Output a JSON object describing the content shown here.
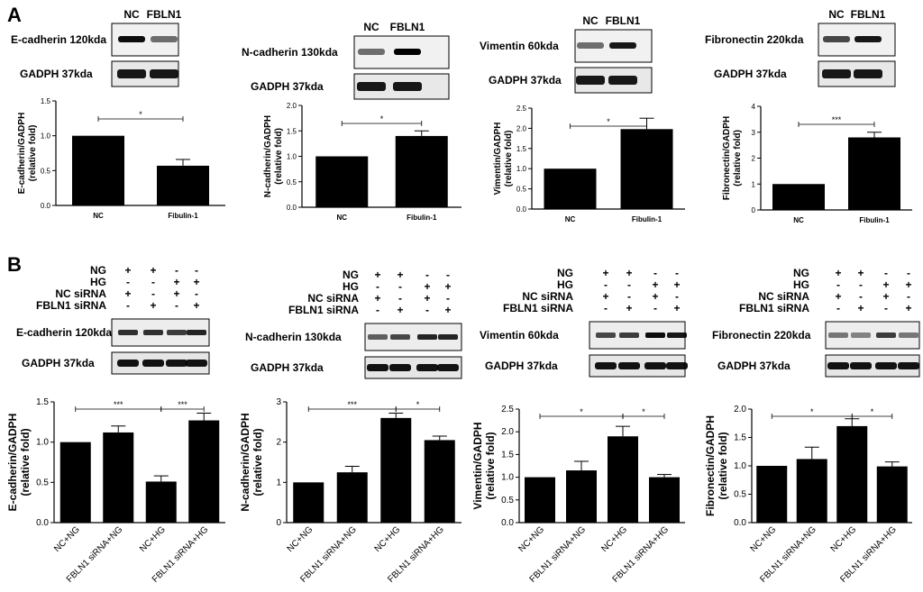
{
  "panel_labels": [
    "A",
    "B"
  ],
  "panelA": {
    "blots": [
      {
        "lanes": [
          "NC",
          "FBLN1"
        ],
        "target": "E-cadherin",
        "target_kda": "120kda",
        "loading": "GADPH",
        "loading_kda": "37kda"
      },
      {
        "lanes": [
          "NC",
          "FBLN1"
        ],
        "target": "N-cadherin",
        "target_kda": "130kda",
        "loading": "GADPH",
        "loading_kda": "37kda"
      },
      {
        "lanes": [
          "NC",
          "FBLN1"
        ],
        "target": "Vimentin",
        "target_kda": "60kda",
        "loading": "GADPH",
        "loading_kda": "37kda"
      },
      {
        "lanes": [
          "NC",
          "FBLN1"
        ],
        "target": "Fibronectin",
        "target_kda": "220kda",
        "loading": "GADPH",
        "loading_kda": "37kda"
      }
    ]
  },
  "panelB": {
    "condition_rows": [
      "NG",
      "HG",
      "NC siRNA",
      "FBLN1 siRNA"
    ],
    "condition_signs": [
      [
        "+",
        "+",
        "-",
        "-"
      ],
      [
        "-",
        "-",
        "+",
        "+"
      ],
      [
        "+",
        "-",
        "+",
        "-"
      ],
      [
        "-",
        "+",
        "-",
        "+"
      ]
    ],
    "blots": [
      {
        "target": "E-cadherin",
        "target_kda": "120kda",
        "loading": "GADPH",
        "loading_kda": "37kda"
      },
      {
        "target": "N-cadherin",
        "target_kda": "130kda",
        "loading": "GADPH",
        "loading_kda": "37kda"
      },
      {
        "target": "Vimentin",
        "target_kda": "60kda",
        "loading": "GADPH",
        "loading_kda": "37kda"
      },
      {
        "target": "Fibronectin",
        "target_kda": "220kda",
        "loading": "GADPH",
        "loading_kda": "37kda"
      }
    ]
  },
  "chart_data": [
    {
      "type": "bar",
      "panel": "A",
      "categories": [
        "NC",
        "Fibulin-1"
      ],
      "values": [
        1.0,
        0.57
      ],
      "errors": [
        0,
        0.09
      ],
      "ylabel": [
        "E-cadherin/GADPH",
        "(relative fold)"
      ],
      "ylim": [
        0,
        1.5
      ],
      "yticks": [
        "0.0",
        "0.5",
        "1.0",
        "1.5"
      ],
      "significance": [
        {
          "from": 0,
          "to": 1,
          "label": "*"
        }
      ]
    },
    {
      "type": "bar",
      "panel": "A",
      "categories": [
        "NC",
        "Fibulin-1"
      ],
      "values": [
        1.0,
        1.4
      ],
      "errors": [
        0,
        0.1
      ],
      "ylabel": [
        "N-cadherin/GADPH",
        "(relative fold)"
      ],
      "ylim": [
        0,
        2.0
      ],
      "yticks": [
        "0.0",
        "0.5",
        "1.0",
        "1.5",
        "2.0"
      ],
      "significance": [
        {
          "from": 0,
          "to": 1,
          "label": "*"
        }
      ]
    },
    {
      "type": "bar",
      "panel": "A",
      "categories": [
        "NC",
        "Fibulin-1"
      ],
      "values": [
        1.0,
        1.98
      ],
      "errors": [
        0,
        0.27
      ],
      "ylabel": [
        "Vimentin/GADPH",
        "(relative fold)"
      ],
      "ylim": [
        0,
        2.5
      ],
      "yticks": [
        "0.0",
        "0.5",
        "1.0",
        "1.5",
        "2.0",
        "2.5"
      ],
      "significance": [
        {
          "from": 0,
          "to": 1,
          "label": "*"
        }
      ]
    },
    {
      "type": "bar",
      "panel": "A",
      "categories": [
        "NC",
        "Fibulin-1"
      ],
      "values": [
        1.0,
        2.8
      ],
      "errors": [
        0,
        0.2
      ],
      "ylabel": [
        "Fibronectin/GADPH",
        "(relative fold)"
      ],
      "ylim": [
        0,
        4
      ],
      "yticks": [
        "0",
        "1",
        "2",
        "3",
        "4"
      ],
      "significance": [
        {
          "from": 0,
          "to": 1,
          "label": "***"
        }
      ]
    },
    {
      "type": "bar",
      "panel": "B",
      "categories": [
        "NC+NG",
        "FBLN1 siRNA+NG",
        "NC+HG",
        "FBLN1 siRNA+HG"
      ],
      "values": [
        1.0,
        1.12,
        0.51,
        1.27
      ],
      "errors": [
        0,
        0.08,
        0.07,
        0.09
      ],
      "ylabel": [
        "E-cadherin/GADPH",
        "(relative fold)"
      ],
      "ylim": [
        0,
        1.5
      ],
      "yticks": [
        "0.0",
        "0.5",
        "1.0",
        "1.5"
      ],
      "significance": [
        {
          "from": 0,
          "to": 2,
          "label": "***"
        },
        {
          "from": 2,
          "to": 3,
          "label": "***"
        }
      ]
    },
    {
      "type": "bar",
      "panel": "B",
      "categories": [
        "NC+NG",
        "FBLN1 siRNA+NG",
        "NC+HG",
        "FBLN1 siRNA+HG"
      ],
      "values": [
        1.0,
        1.25,
        2.6,
        2.05
      ],
      "errors": [
        0,
        0.15,
        0.12,
        0.1
      ],
      "ylabel": [
        "N-cadherin/GADPH",
        "(relative fold)"
      ],
      "ylim": [
        0,
        3
      ],
      "yticks": [
        "0",
        "1",
        "2",
        "3"
      ],
      "significance": [
        {
          "from": 0,
          "to": 2,
          "label": "***"
        },
        {
          "from": 2,
          "to": 3,
          "label": "*"
        }
      ]
    },
    {
      "type": "bar",
      "panel": "B",
      "categories": [
        "NC+NG",
        "FBLN1 siRNA+NG",
        "NC+HG",
        "FBLN1 siRNA+HG"
      ],
      "values": [
        1.0,
        1.15,
        1.9,
        1.0
      ],
      "errors": [
        0,
        0.2,
        0.22,
        0.06
      ],
      "ylabel": [
        "Vimentin/GADPH",
        "(relative fold)"
      ],
      "ylim": [
        0,
        2.5
      ],
      "yticks": [
        "0.0",
        "0.5",
        "1.0",
        "1.5",
        "2.0",
        "2.5"
      ],
      "significance": [
        {
          "from": 0,
          "to": 2,
          "label": "*"
        },
        {
          "from": 2,
          "to": 3,
          "label": "*"
        }
      ]
    },
    {
      "type": "bar",
      "panel": "B",
      "categories": [
        "NC+NG",
        "FBLN1 siRNA+NG",
        "NC+HG",
        "FBLN1 siRNA+HG"
      ],
      "values": [
        1.0,
        1.12,
        1.7,
        0.99
      ],
      "errors": [
        0,
        0.21,
        0.13,
        0.08
      ],
      "ylabel": [
        "Fibronectin/GADPH",
        "(relative fold)"
      ],
      "ylim": [
        0,
        2.0
      ],
      "yticks": [
        "0.0",
        "0.5",
        "1.0",
        "1.5",
        "2.0"
      ],
      "significance": [
        {
          "from": 0,
          "to": 2,
          "label": "*"
        },
        {
          "from": 2,
          "to": 3,
          "label": "*"
        }
      ]
    }
  ]
}
